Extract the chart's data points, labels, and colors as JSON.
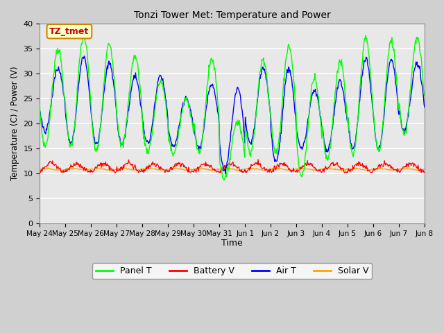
{
  "title": "Tonzi Tower Met: Temperature and Power",
  "ylabel": "Temperature (C) / Power (V)",
  "xlabel": "Time",
  "annotation_text": "TZ_tmet",
  "annotation_bg": "#FFFFCC",
  "annotation_border": "#CC8800",
  "annotation_text_color": "#CC0000",
  "ylim": [
    0,
    40
  ],
  "yticks": [
    0,
    5,
    10,
    15,
    20,
    25,
    30,
    35,
    40
  ],
  "fig_bg": "#D0D0D0",
  "plot_bg": "#E8E8E8",
  "grid_color": "#FFFFFF",
  "colors": {
    "panel_t": "#00FF00",
    "battery_v": "#FF0000",
    "air_t": "#0000FF",
    "solar_v": "#FFA500"
  },
  "legend_labels": [
    "Panel T",
    "Battery V",
    "Air T",
    "Solar V"
  ],
  "xtick_labels": [
    "May 24",
    "May 25",
    "May 26",
    "May 27",
    "May 28",
    "May 29",
    "May 30",
    "May 31",
    "Jun 1",
    "Jun 2",
    "Jun 3",
    "Jun 4",
    "Jun 5",
    "Jun 6",
    "Jun 7",
    "Jun 8"
  ],
  "day_peaks_panel": [
    35.0,
    37.5,
    36.0,
    33.5,
    28.5,
    25.0,
    33.0,
    20.5,
    33.0,
    35.5,
    29.5,
    32.5,
    37.0,
    36.5,
    37.0
  ],
  "day_peaks_air": [
    31.0,
    33.5,
    32.0,
    29.5,
    29.5,
    25.0,
    28.0,
    27.0,
    31.0,
    31.0,
    26.5,
    28.5,
    33.0,
    33.0,
    32.0
  ],
  "day_mins_panel": [
    15.5,
    15.5,
    14.5,
    15.5,
    14.5,
    14.0,
    14.0,
    9.0,
    14.0,
    14.0,
    9.5,
    13.0,
    13.5,
    14.5,
    18.0
  ],
  "day_mins_air": [
    18.5,
    16.0,
    16.0,
    16.0,
    16.0,
    15.5,
    15.0,
    10.5,
    16.0,
    12.5,
    15.0,
    14.5,
    15.0,
    15.0,
    18.5
  ]
}
